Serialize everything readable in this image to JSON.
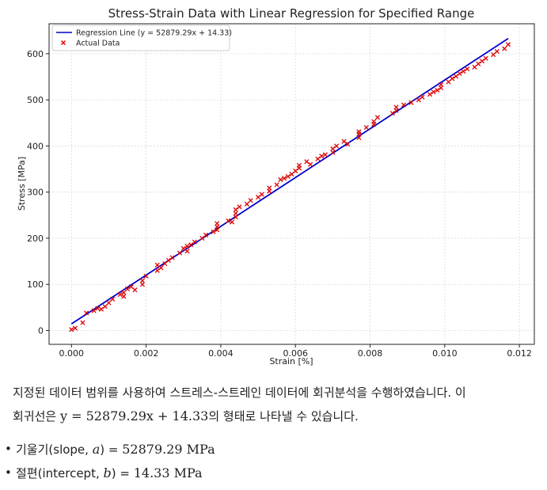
{
  "chart_data": {
    "type": "scatter",
    "title": "Stress-Strain Data with Linear Regression for Specified Range",
    "xlabel": "Strain [%]",
    "ylabel": "Stress [MPa]",
    "xlim": [
      -0.0006,
      0.0124
    ],
    "ylim": [
      -30,
      665
    ],
    "xticks": [
      0.0,
      0.002,
      0.004,
      0.006,
      0.008,
      0.01,
      0.012
    ],
    "xtick_labels": [
      "0.000",
      "0.002",
      "0.004",
      "0.006",
      "0.008",
      "0.010",
      "0.012"
    ],
    "yticks": [
      0,
      100,
      200,
      300,
      400,
      500,
      600
    ],
    "ytick_labels": [
      "0",
      "100",
      "200",
      "300",
      "400",
      "500",
      "600"
    ],
    "grid": true,
    "legend_position": "top-left",
    "regression": {
      "name": "Regression Line (y = 52879.29x + 14.33)",
      "slope": 52879.29,
      "intercept": 14.33,
      "x_range": [
        0.0,
        0.0117
      ],
      "color": "#0000cc"
    },
    "series": [
      {
        "name": "Actual Data",
        "marker": "x",
        "color": "#dd0000",
        "points": [
          [
            0.0,
            2
          ],
          [
            0.0001,
            5
          ],
          [
            0.0003,
            17
          ],
          [
            0.0004,
            38
          ],
          [
            0.0006,
            43
          ],
          [
            0.0007,
            48
          ],
          [
            0.0008,
            46
          ],
          [
            0.0009,
            52
          ],
          [
            0.001,
            60
          ],
          [
            0.0011,
            68
          ],
          [
            0.0013,
            78
          ],
          [
            0.0014,
            74
          ],
          [
            0.0014,
            82
          ],
          [
            0.0015,
            90
          ],
          [
            0.0016,
            95
          ],
          [
            0.0017,
            88
          ],
          [
            0.0019,
            108
          ],
          [
            0.0019,
            100
          ],
          [
            0.002,
            118
          ],
          [
            0.0023,
            130
          ],
          [
            0.0023,
            142
          ],
          [
            0.0024,
            136
          ],
          [
            0.0025,
            145
          ],
          [
            0.0026,
            152
          ],
          [
            0.0027,
            158
          ],
          [
            0.0029,
            168
          ],
          [
            0.003,
            178
          ],
          [
            0.0031,
            172
          ],
          [
            0.0031,
            183
          ],
          [
            0.0032,
            186
          ],
          [
            0.0033,
            192
          ],
          [
            0.0035,
            200
          ],
          [
            0.0036,
            207
          ],
          [
            0.0038,
            214
          ],
          [
            0.0039,
            218
          ],
          [
            0.0039,
            225
          ],
          [
            0.0039,
            232
          ],
          [
            0.0042,
            238
          ],
          [
            0.0043,
            235
          ],
          [
            0.0044,
            246
          ],
          [
            0.0044,
            254
          ],
          [
            0.0044,
            262
          ],
          [
            0.0045,
            268
          ],
          [
            0.0047,
            274
          ],
          [
            0.0048,
            282
          ],
          [
            0.005,
            289
          ],
          [
            0.0051,
            295
          ],
          [
            0.0053,
            302
          ],
          [
            0.0053,
            309
          ],
          [
            0.0055,
            316
          ],
          [
            0.0056,
            327
          ],
          [
            0.0057,
            330
          ],
          [
            0.0058,
            334
          ],
          [
            0.0059,
            339
          ],
          [
            0.006,
            346
          ],
          [
            0.0061,
            352
          ],
          [
            0.0061,
            358
          ],
          [
            0.0063,
            366
          ],
          [
            0.0064,
            360
          ],
          [
            0.0066,
            372
          ],
          [
            0.0067,
            378
          ],
          [
            0.0068,
            381
          ],
          [
            0.007,
            386
          ],
          [
            0.007,
            394
          ],
          [
            0.0071,
            400
          ],
          [
            0.0073,
            410
          ],
          [
            0.0074,
            404
          ],
          [
            0.0077,
            418
          ],
          [
            0.0077,
            426
          ],
          [
            0.0077,
            431
          ],
          [
            0.0079,
            440
          ],
          [
            0.0081,
            447
          ],
          [
            0.0081,
            453
          ],
          [
            0.0082,
            462
          ],
          [
            0.0086,
            471
          ],
          [
            0.0087,
            477
          ],
          [
            0.0087,
            484
          ],
          [
            0.0089,
            489
          ],
          [
            0.0091,
            494
          ],
          [
            0.0093,
            500
          ],
          [
            0.0094,
            506
          ],
          [
            0.0096,
            512
          ],
          [
            0.0097,
            517
          ],
          [
            0.0098,
            521
          ],
          [
            0.0099,
            526
          ],
          [
            0.0099,
            533
          ],
          [
            0.0101,
            539
          ],
          [
            0.0102,
            546
          ],
          [
            0.0103,
            551
          ],
          [
            0.0104,
            557
          ],
          [
            0.0105,
            562
          ],
          [
            0.0106,
            567
          ],
          [
            0.0108,
            571
          ],
          [
            0.0109,
            578
          ],
          [
            0.011,
            584
          ],
          [
            0.0111,
            590
          ],
          [
            0.0113,
            598
          ],
          [
            0.0114,
            605
          ],
          [
            0.0116,
            611
          ],
          [
            0.0117,
            620
          ]
        ]
      }
    ]
  },
  "text": {
    "para_line1": "지정된 데이터 범위를 사용하여 스트레스-스트레인 데이터에 회귀분석을 수행하였습니다. 이",
    "para_line2_prefix": "회귀선은 ",
    "para_eq": "y = 52879.29x + 14.33",
    "para_line2_suffix": "의 형태로 나타낼 수 있습니다.",
    "bullet1_label": "기울기(slope, ",
    "bullet1_var": "a",
    "bullet1_mid": ") = ",
    "bullet1_value": "52879.29 MPa",
    "bullet2_label": "절편(intercept, ",
    "bullet2_var": "b",
    "bullet2_mid": ") = ",
    "bullet2_value": "14.33 MPa",
    "bullet_symbol": "•"
  }
}
